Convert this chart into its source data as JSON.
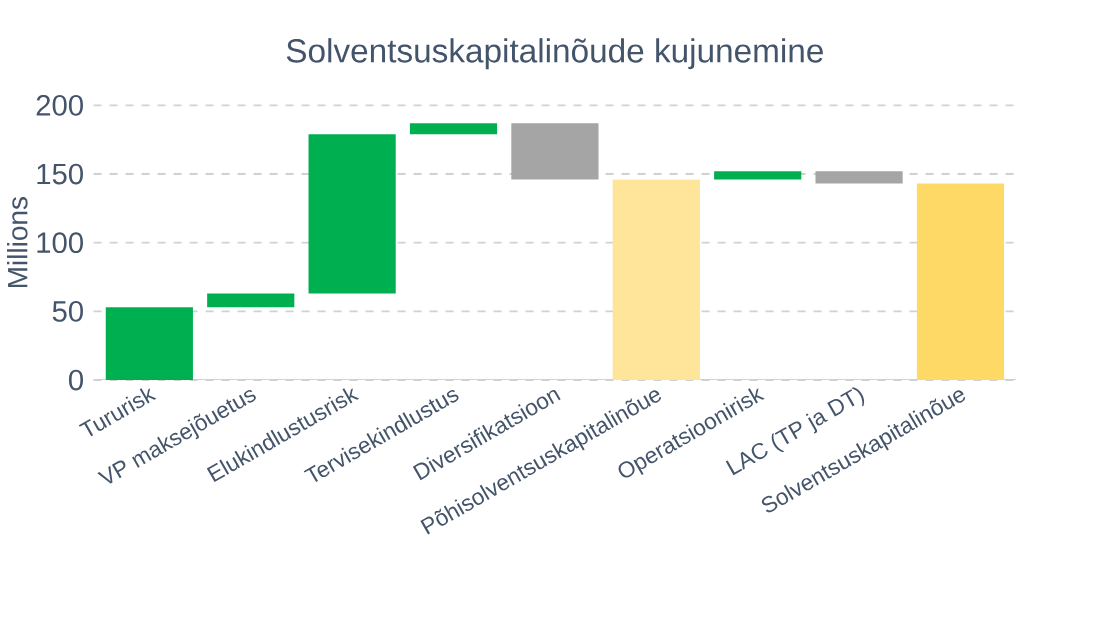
{
  "chart_data": {
    "type": "bar",
    "title": "Solventsuskapitalinõude kujunemine",
    "ylabel": "Millions",
    "categories": [
      "Tururisk",
      "VP maksejõuetus",
      "Elukindlustusrisk",
      "Tervisekindlustus",
      "Diversifikatsioon",
      "Põhisolventsuskapitalinõue",
      "Operatsioonirisk",
      "LAC (TP ja DT)",
      "Solventsuskapitalinõue"
    ],
    "values": [
      53,
      10,
      116,
      8,
      -41,
      146,
      6,
      -9,
      143
    ],
    "base": [
      0,
      53,
      63,
      179,
      187,
      0,
      146,
      152,
      0
    ],
    "colors": [
      "#00b050",
      "#00b050",
      "#00b050",
      "#00b050",
      "#a5a5a5",
      "#ffe599",
      "#00b050",
      "#a5a5a5",
      "#ffd966"
    ],
    "ylim": [
      0,
      200
    ],
    "yticks": [
      0,
      50,
      100,
      150,
      200
    ],
    "grid": "y"
  }
}
